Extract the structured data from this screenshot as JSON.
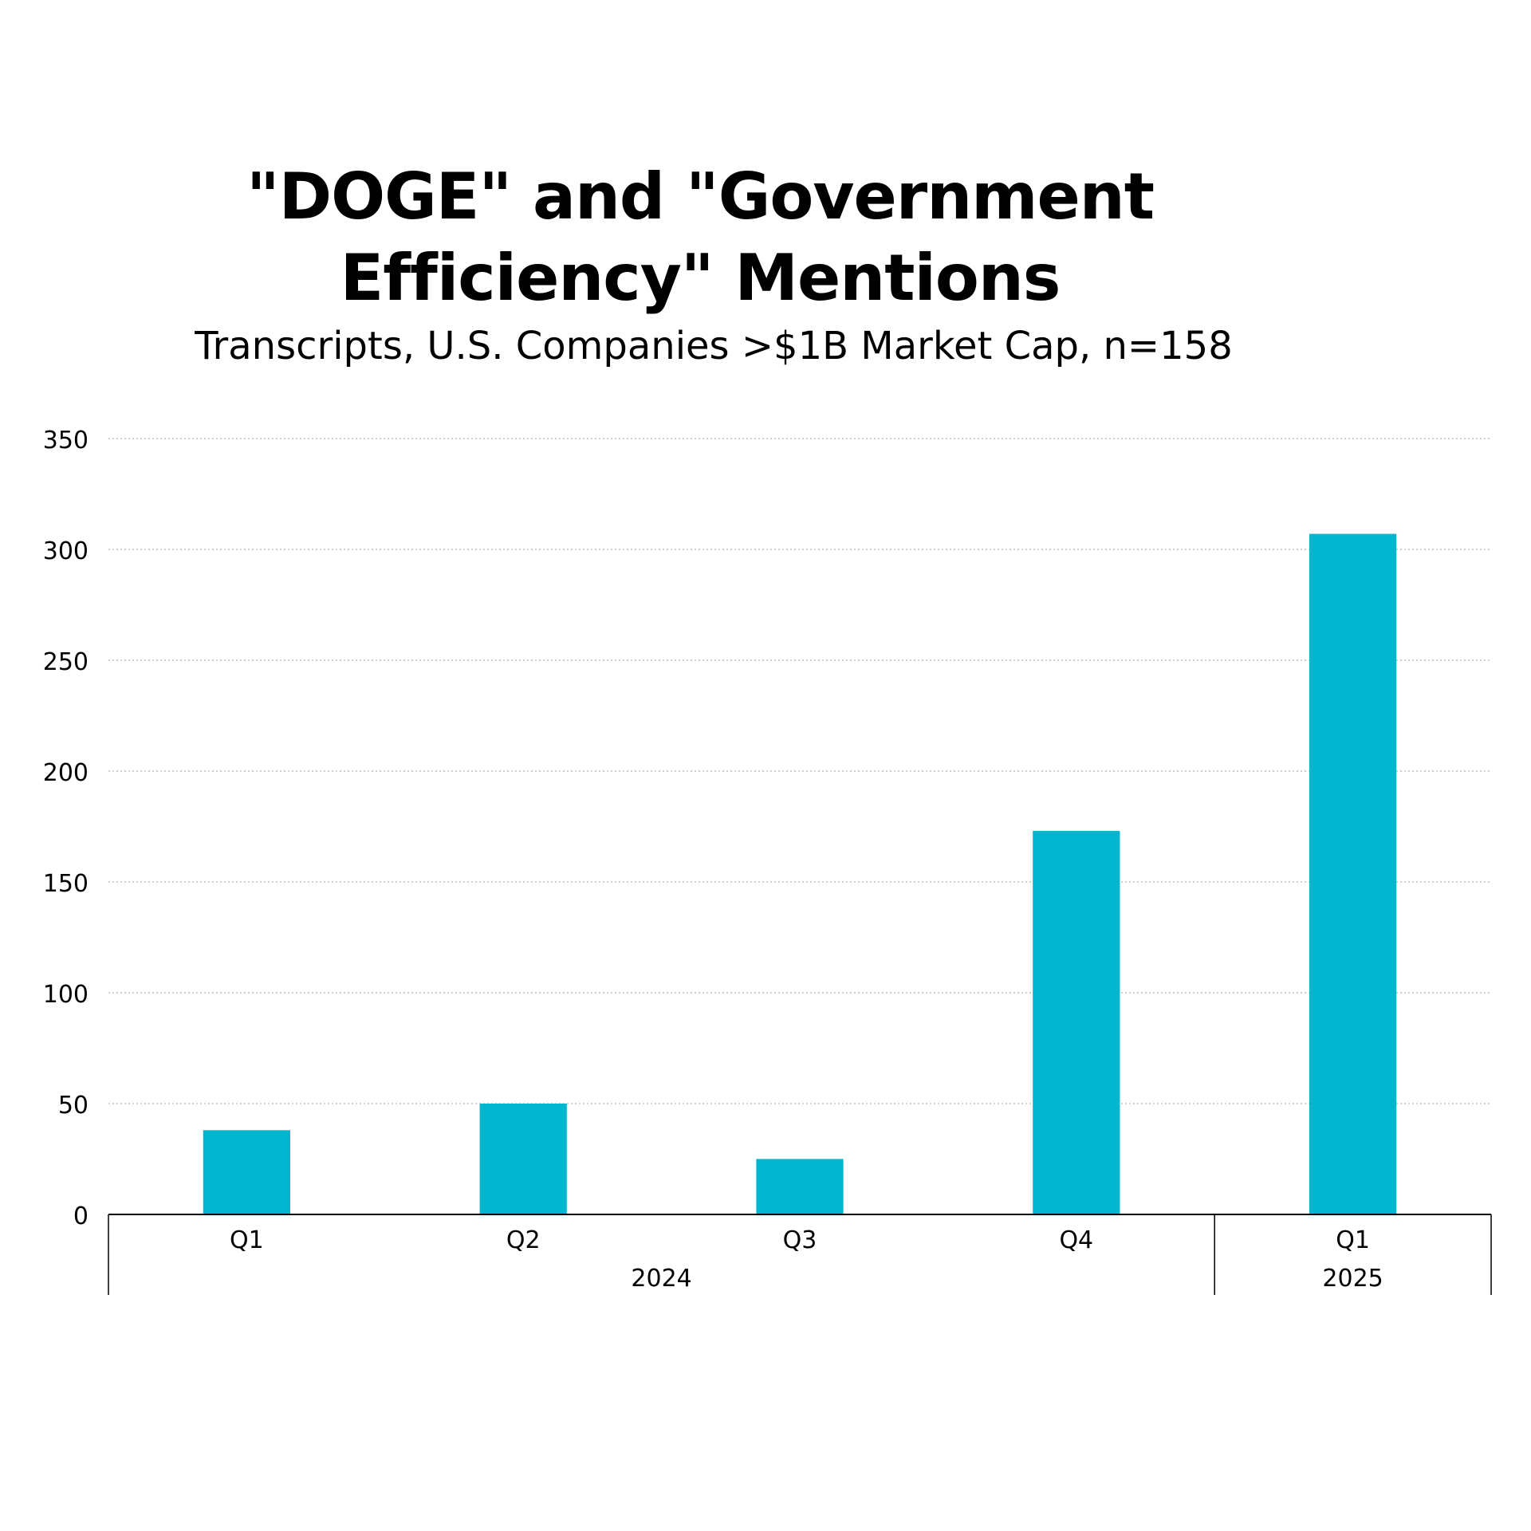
{
  "chart_data": {
    "type": "bar",
    "title": "\"DOGE\" and \"Government Efficiency\" Mentions",
    "subtitle": "Transcripts, U.S. Companies >$1B Market Cap, n=158",
    "xlabel": "",
    "ylabel": "",
    "categories": [
      "Q1",
      "Q2",
      "Q3",
      "Q4",
      "Q1"
    ],
    "groups": [
      {
        "label": "2024",
        "categories": [
          "Q1",
          "Q2",
          "Q3",
          "Q4"
        ]
      },
      {
        "label": "2025",
        "categories": [
          "Q1"
        ]
      }
    ],
    "values": [
      38,
      50,
      25,
      173,
      307
    ],
    "ylim": [
      0,
      350
    ],
    "yticks": [
      0,
      50,
      100,
      150,
      200,
      250,
      300,
      350
    ],
    "grid": true,
    "legend": "none",
    "colors": {
      "bar": "#00B5CE",
      "grid": "#D0D0D0",
      "axis": "#000000"
    }
  }
}
